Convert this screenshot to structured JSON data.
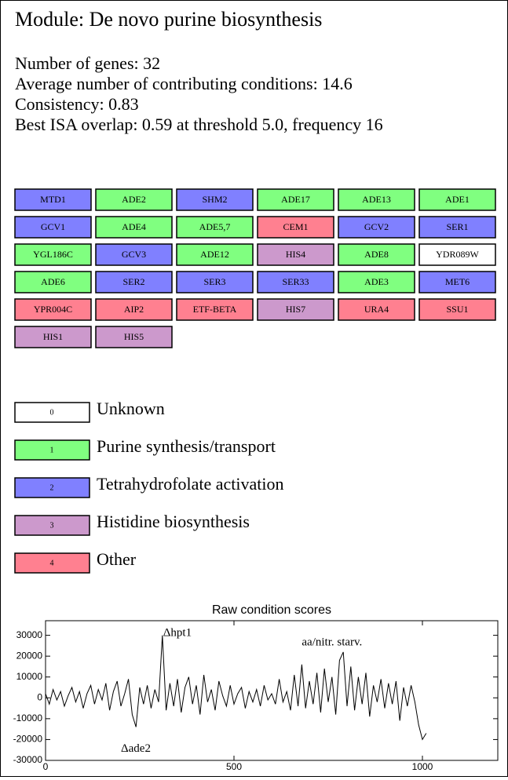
{
  "header": {
    "title": "Module: De novo purine biosynthesis"
  },
  "stats": [
    "Number of genes: 32",
    "Average number of contributing conditions: 14.6",
    "Consistency: 0.83",
    "Best ISA overlap: 0.59 at threshold 5.0, frequency 16"
  ],
  "genes": [
    {
      "name": "MTD1",
      "category": 2
    },
    {
      "name": "ADE2",
      "category": 1
    },
    {
      "name": "SHM2",
      "category": 2
    },
    {
      "name": "ADE17",
      "category": 1
    },
    {
      "name": "ADE13",
      "category": 1
    },
    {
      "name": "ADE1",
      "category": 1
    },
    {
      "name": "GCV1",
      "category": 2
    },
    {
      "name": "ADE4",
      "category": 1
    },
    {
      "name": "ADE5,7",
      "category": 1
    },
    {
      "name": "CEM1",
      "category": 4
    },
    {
      "name": "GCV2",
      "category": 2
    },
    {
      "name": "SER1",
      "category": 2
    },
    {
      "name": "YGL186C",
      "category": 1
    },
    {
      "name": "GCV3",
      "category": 2
    },
    {
      "name": "ADE12",
      "category": 1
    },
    {
      "name": "HIS4",
      "category": 3
    },
    {
      "name": "ADE8",
      "category": 1
    },
    {
      "name": "YDR089W",
      "category": 0
    },
    {
      "name": "ADE6",
      "category": 1
    },
    {
      "name": "SER2",
      "category": 2
    },
    {
      "name": "SER3",
      "category": 2
    },
    {
      "name": "SER33",
      "category": 2
    },
    {
      "name": "ADE3",
      "category": 1
    },
    {
      "name": "MET6",
      "category": 2
    },
    {
      "name": "YPR004C",
      "category": 4
    },
    {
      "name": "AIP2",
      "category": 4
    },
    {
      "name": "ETF-BETA",
      "category": 4
    },
    {
      "name": "HIS7",
      "category": 3
    },
    {
      "name": "URA4",
      "category": 4
    },
    {
      "name": "SSU1",
      "category": 4
    },
    {
      "name": "HIS1",
      "category": 3
    },
    {
      "name": "HIS5",
      "category": 3
    }
  ],
  "legend": [
    {
      "code": "0",
      "label": "Unknown",
      "color": "#ffffff"
    },
    {
      "code": "1",
      "label": "Purine synthesis/transport",
      "color": "#80ff80"
    },
    {
      "code": "2",
      "label": "Tetrahydrofolate activation",
      "color": "#8080ff"
    },
    {
      "code": "3",
      "label": "Histidine biosynthesis",
      "color": "#cc99cc"
    },
    {
      "code": "4",
      "label": "Other",
      "color": "#ff8090"
    }
  ],
  "chart_data": {
    "type": "line",
    "title": "Raw condition scores",
    "color": "#000000",
    "xlim": [
      0,
      1200
    ],
    "ylim": [
      -30000,
      37000
    ],
    "xticks": [
      0,
      500,
      1000
    ],
    "yticks": [
      -30000,
      -20000,
      -10000,
      0,
      10000,
      20000,
      30000
    ],
    "annotations": [
      {
        "text": "Δhpt1",
        "x": 312,
        "y": 31000
      },
      {
        "text": "aa/nitr. starv.",
        "x": 680,
        "y": 26500
      },
      {
        "text": "Δade2",
        "x": 200,
        "y": -24500
      }
    ],
    "x": [
      0,
      10,
      20,
      30,
      40,
      50,
      60,
      70,
      80,
      90,
      100,
      110,
      120,
      130,
      140,
      150,
      160,
      170,
      180,
      190,
      200,
      210,
      220,
      230,
      240,
      250,
      260,
      270,
      280,
      290,
      300,
      310,
      320,
      330,
      340,
      350,
      360,
      370,
      380,
      390,
      400,
      410,
      420,
      430,
      440,
      450,
      460,
      470,
      480,
      490,
      500,
      510,
      520,
      530,
      540,
      550,
      560,
      570,
      580,
      590,
      600,
      610,
      620,
      630,
      640,
      650,
      660,
      670,
      680,
      690,
      700,
      710,
      720,
      730,
      740,
      750,
      760,
      770,
      780,
      790,
      800,
      810,
      820,
      830,
      840,
      850,
      860,
      870,
      880,
      890,
      900,
      910,
      920,
      930,
      940,
      950,
      960,
      970,
      980,
      990,
      1000,
      1010
    ],
    "values": [
      2000,
      -3000,
      4000,
      -1000,
      3000,
      -4000,
      1000,
      5000,
      -2000,
      3000,
      -5000,
      2000,
      6000,
      -3000,
      4000,
      -1000,
      7000,
      -6000,
      3000,
      8000,
      -4000,
      2000,
      9000,
      -8000,
      -14000,
      5000,
      -3000,
      6000,
      -5000,
      4000,
      -2000,
      30000,
      -6000,
      7000,
      -4000,
      9000,
      -7000,
      5000,
      10000,
      -3000,
      6000,
      -8000,
      11000,
      -2000,
      4000,
      -6000,
      8000,
      1000,
      -4000,
      6000,
      -3000,
      2000,
      5000,
      -5000,
      3000,
      -2000,
      4000,
      -4000,
      6000,
      -1000,
      2000,
      -3000,
      9000,
      -2000,
      3000,
      -6000,
      11000,
      -4000,
      16000,
      -5000,
      8000,
      -3000,
      12000,
      -7000,
      14000,
      -2000,
      10000,
      -8000,
      18000,
      22000,
      -4000,
      15000,
      -6000,
      10000,
      -3000,
      12000,
      -9000,
      6000,
      -2000,
      9000,
      -5000,
      7000,
      -3000,
      8000,
      -11000,
      5000,
      -4000,
      6000,
      -2000,
      -13000,
      -20000,
      -17000
    ]
  }
}
